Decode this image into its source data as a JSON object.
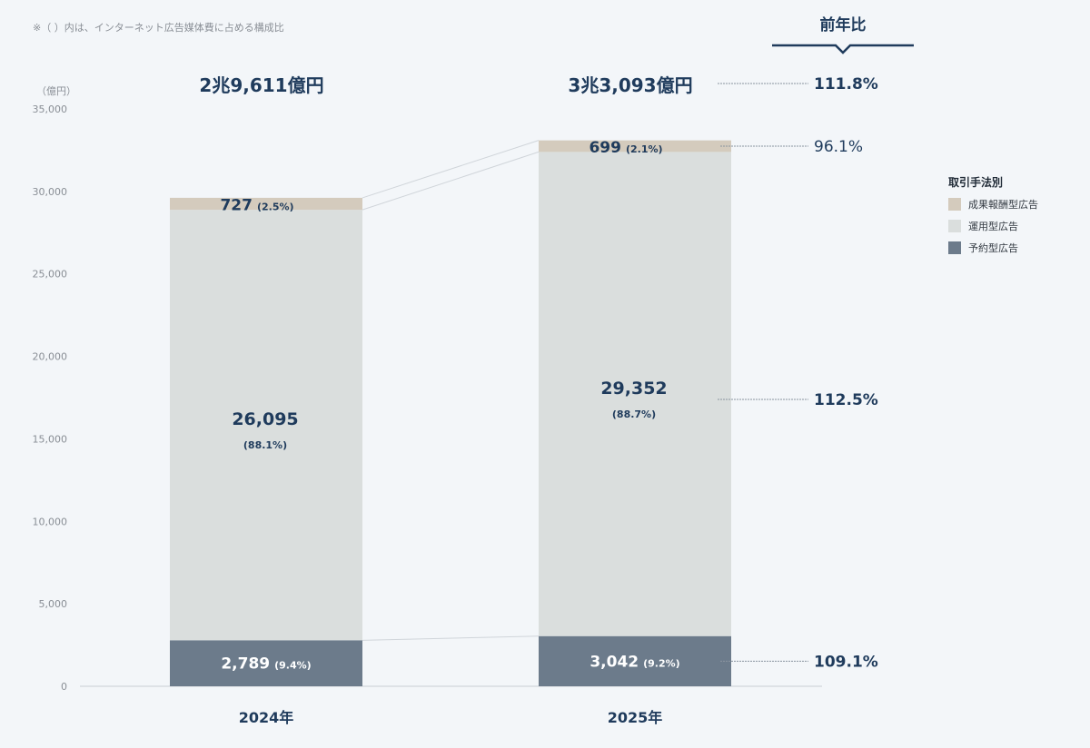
{
  "note": "※（ ）内は、インターネット広告媒体費に占める構成比",
  "yoy_header": "前年比",
  "chart_data": {
    "type": "bar",
    "stacked": true,
    "categories": [
      "2024年",
      "2025年"
    ],
    "totals": [
      "2兆9,611億円",
      "3兆3,093億円"
    ],
    "ylabel": "（億円）",
    "ylim": [
      0,
      35000
    ],
    "yticks": [
      0,
      5000,
      10000,
      15000,
      20000,
      25000,
      30000,
      35000
    ],
    "ytick_labels": [
      "0",
      "5,000",
      "10,000",
      "15,000",
      "20,000",
      "25,000",
      "30,000",
      "35,000"
    ],
    "legend_title": "取引手法別",
    "legend_position": "right",
    "series": [
      {
        "name": "予約型広告",
        "color": "#6c7b8b",
        "values": [
          2789,
          3042
        ],
        "labels": [
          "2,789",
          "3,042"
        ],
        "shares": [
          "(9.4%)",
          "(9.2%)"
        ],
        "yoy": "109.1%"
      },
      {
        "name": "運用型広告",
        "color": "#dadedd",
        "values": [
          26095,
          29352
        ],
        "labels": [
          "26,095",
          "29,352"
        ],
        "shares": [
          "(88.1%)",
          "(88.7%)"
        ],
        "yoy": "112.5%"
      },
      {
        "name": "成果報酬型広告",
        "color": "#d4cbbd",
        "values": [
          727,
          699
        ],
        "labels": [
          "727",
          "699"
        ],
        "shares": [
          "(2.5%)",
          "(2.1%)"
        ],
        "yoy": "96.1%"
      }
    ],
    "total_yoy": "111.8%"
  }
}
